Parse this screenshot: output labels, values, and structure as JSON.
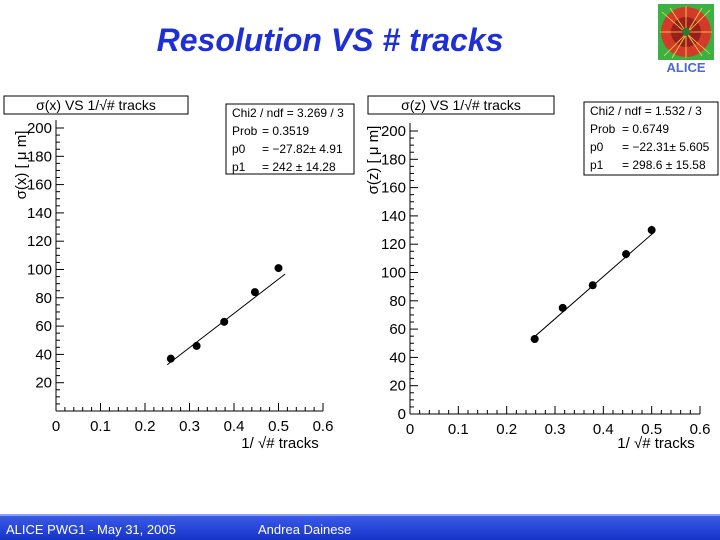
{
  "slide": {
    "title": "Resolution VS # tracks",
    "logo_text": "ALICE",
    "footer_left": "ALICE PWG1 - May 31, 2005",
    "footer_author": "Andrea Dainese"
  },
  "colors": {
    "title": "#1f2fd6",
    "footer": "#1533c8",
    "marker": "#000000"
  },
  "chart_data": [
    {
      "type": "scatter",
      "title": "σ(x) VS 1/√# tracks",
      "xlabel": "1/ √# tracks",
      "ylabel": "σ(x) [ μ m]",
      "xlim": [
        0,
        0.6
      ],
      "ylim": [
        0,
        200
      ],
      "xticks": [
        0,
        0.1,
        0.2,
        0.3,
        0.4,
        0.5,
        0.6
      ],
      "xtick_labels": [
        "0",
        "0.1",
        "0.2",
        "0.3",
        "0.4",
        "0.5",
        "0.6"
      ],
      "yticks": [
        20,
        40,
        60,
        80,
        100,
        120,
        140,
        160,
        180,
        200
      ],
      "ytick_labels": [
        "20",
        "40",
        "60",
        "80",
        "100",
        "120",
        "140",
        "160",
        "180",
        "200"
      ],
      "points": [
        {
          "x": 0.258,
          "y": 37,
          "err": 2
        },
        {
          "x": 0.316,
          "y": 46,
          "err": 2
        },
        {
          "x": 0.378,
          "y": 63,
          "err": 2
        },
        {
          "x": 0.447,
          "y": 84,
          "err": 2
        },
        {
          "x": 0.5,
          "y": 101,
          "err": 2
        }
      ],
      "fit": {
        "p0": -27.82,
        "p1": 242,
        "x_range": [
          0.25,
          0.515
        ]
      },
      "stats": [
        {
          "label": "Chi2 / ndf = 3.269 / 3",
          "value": ""
        },
        {
          "label": "Prob",
          "value": "= 0.3519"
        },
        {
          "label": "p0",
          "value": "= −27.82± 4.91"
        },
        {
          "label": "p1",
          "value": "= 242 ± 14.28"
        }
      ]
    },
    {
      "type": "scatter",
      "title": "σ(z) VS 1/√# tracks",
      "xlabel": "1/ √# tracks",
      "ylabel": "σ(z) [ μ m]",
      "xlim": [
        0,
        0.6
      ],
      "ylim": [
        0,
        200
      ],
      "xticks": [
        0,
        0.1,
        0.2,
        0.3,
        0.4,
        0.5,
        0.6
      ],
      "xtick_labels": [
        "0",
        "0.1",
        "0.2",
        "0.3",
        "0.4",
        "0.5",
        "0.6"
      ],
      "yticks": [
        0,
        20,
        40,
        60,
        80,
        100,
        120,
        140,
        160,
        180,
        200
      ],
      "ytick_labels": [
        "0",
        "20",
        "40",
        "60",
        "80",
        "100",
        "120",
        "140",
        "160",
        "180",
        "200"
      ],
      "points": [
        {
          "x": 0.258,
          "y": 53,
          "err": 2
        },
        {
          "x": 0.316,
          "y": 75,
          "err": 2
        },
        {
          "x": 0.378,
          "y": 91,
          "err": 2
        },
        {
          "x": 0.447,
          "y": 113,
          "err": 3
        },
        {
          "x": 0.5,
          "y": 130,
          "err": 3
        }
      ],
      "fit": {
        "p0": -22.31,
        "p1": 298.6,
        "x_range": [
          0.25,
          0.505
        ]
      },
      "stats": [
        {
          "label": "Chi2 / ndf = 1.532 / 3",
          "value": ""
        },
        {
          "label": "Prob",
          "value": "= 0.6749"
        },
        {
          "label": "p0",
          "value": "= −22.31± 5.605"
        },
        {
          "label": "p1",
          "value": "= 298.6 ± 15.58"
        }
      ]
    }
  ]
}
